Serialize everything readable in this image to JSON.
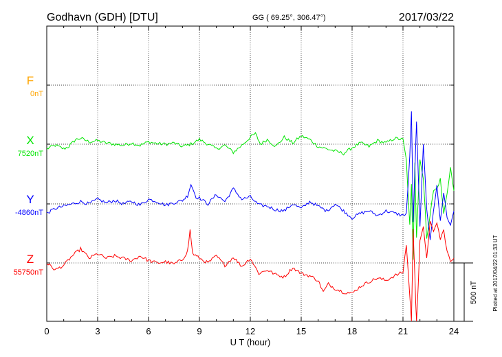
{
  "header": {
    "station": "Godhavn (GDH)  [DTU]",
    "coords": "GG ( 69.25°, 306.47°)",
    "date": "2017/03/22"
  },
  "footer": {
    "plotted": "Plotted at 2017/04/22 01:33 UT"
  },
  "chart_data": {
    "type": "line",
    "xlabel": "U T (hour)",
    "xlim": [
      0,
      24
    ],
    "xticks": [
      "0",
      "3",
      "6",
      "9",
      "12",
      "15",
      "18",
      "21",
      "24"
    ],
    "scale_label": "500 nT",
    "scale_nT": 500,
    "grid": true,
    "series": [
      {
        "name": "F",
        "baseline": "0nT",
        "color": "#ffa500",
        "x": [],
        "y": []
      },
      {
        "name": "X",
        "baseline": "7520nT",
        "color": "#00e600",
        "x": [
          0,
          0.5,
          1,
          1.3,
          1.7,
          2,
          2.5,
          3,
          3.5,
          4,
          4.5,
          5,
          5.5,
          6,
          6.5,
          7,
          7.5,
          8,
          8.5,
          9,
          9.5,
          10,
          10.5,
          11,
          11.5,
          12,
          12.3,
          12.6,
          13,
          13.5,
          14,
          14.5,
          15,
          15.5,
          16,
          16.5,
          17,
          17.5,
          18,
          18.5,
          19,
          19.5,
          20,
          20.5,
          21,
          21.2,
          21.4,
          21.5,
          21.6,
          21.7,
          21.8,
          22,
          22.2,
          22.4,
          22.6,
          22.8,
          23,
          23.2,
          23.4,
          23.6,
          23.8,
          24
        ],
        "y": [
          -40,
          -10,
          -40,
          -20,
          40,
          50,
          20,
          30,
          10,
          0,
          -10,
          10,
          -10,
          20,
          5,
          0,
          10,
          -20,
          0,
          40,
          0,
          -40,
          -10,
          -70,
          -10,
          60,
          90,
          0,
          40,
          -20,
          60,
          10,
          70,
          40,
          -20,
          -40,
          -60,
          -80,
          -30,
          10,
          -20,
          30,
          10,
          50,
          40,
          -140,
          -700,
          -350,
          -980,
          -150,
          -800,
          -120,
          -300,
          -800,
          -600,
          -400,
          -380,
          -300,
          -600,
          -420,
          -200,
          -400
        ]
      },
      {
        "name": "Y",
        "baseline": "-4860nT",
        "color": "#0000ff",
        "x": [
          0,
          0.5,
          1,
          1.5,
          2,
          2.5,
          3,
          3.5,
          4,
          4.5,
          5,
          5.5,
          6,
          6.5,
          7,
          7.5,
          8,
          8.3,
          8.5,
          8.8,
          9,
          9.5,
          10,
          10.5,
          11,
          11.5,
          12,
          12.5,
          13,
          13.5,
          14,
          14.5,
          15,
          15.5,
          16,
          16.5,
          17,
          17.5,
          18,
          18.5,
          19,
          19.5,
          20,
          20.5,
          21,
          21.2,
          21.4,
          21.5,
          21.6,
          21.8,
          22,
          22.2,
          22.4,
          22.6,
          22.8,
          23,
          23.2,
          23.4,
          23.6,
          23.8,
          24
        ],
        "y": [
          -80,
          -40,
          -20,
          0,
          20,
          0,
          40,
          10,
          30,
          0,
          20,
          -10,
          40,
          20,
          -10,
          10,
          30,
          70,
          170,
          60,
          50,
          0,
          80,
          20,
          130,
          40,
          60,
          -10,
          -20,
          -50,
          -60,
          0,
          -40,
          20,
          -20,
          -60,
          0,
          -60,
          -120,
          -80,
          -60,
          -100,
          -60,
          -80,
          -100,
          -80,
          400,
          800,
          -150,
          700,
          -200,
          500,
          -50,
          -300,
          -50,
          150,
          -150,
          100,
          -120,
          -180,
          -60
        ]
      },
      {
        "name": "Z",
        "baseline": "55750nT",
        "color": "#ff0000",
        "x": [
          0,
          0.5,
          1,
          1.5,
          2,
          2.5,
          3,
          3.5,
          4,
          4.5,
          5,
          5.5,
          6,
          6.5,
          7,
          7.5,
          8,
          8.3,
          8.45,
          8.6,
          9,
          9.5,
          10,
          10.5,
          11,
          11.5,
          12,
          12.5,
          13,
          13.5,
          14,
          14.5,
          15,
          15.5,
          16,
          16.3,
          16.6,
          17,
          17.5,
          18,
          18.5,
          19,
          19.5,
          20,
          20.5,
          21,
          21.2,
          21.4,
          21.5,
          21.6,
          21.7,
          21.8,
          22,
          22.2,
          22.4,
          22.6,
          22.8,
          23,
          23.2,
          23.4,
          23.6,
          23.8,
          24
        ],
        "y": [
          0,
          -60,
          -20,
          60,
          120,
          40,
          80,
          40,
          60,
          40,
          20,
          60,
          20,
          0,
          10,
          -10,
          30,
          100,
          280,
          80,
          40,
          0,
          60,
          -20,
          50,
          -30,
          40,
          -90,
          -60,
          -100,
          -120,
          -40,
          -90,
          -110,
          -150,
          -250,
          -180,
          -220,
          -250,
          -260,
          -200,
          -160,
          -130,
          -150,
          -110,
          -80,
          160,
          -280,
          -500,
          280,
          -100,
          -550,
          180,
          300,
          50,
          350,
          260,
          350,
          200,
          280,
          100,
          10,
          40
        ]
      }
    ]
  }
}
